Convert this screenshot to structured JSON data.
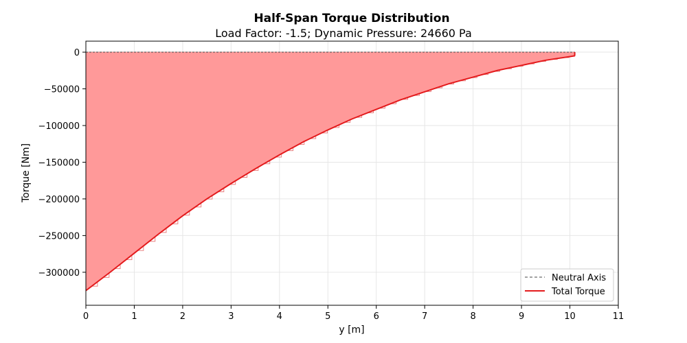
{
  "chart_data": {
    "type": "area",
    "title": "Half-Span Torque Distribution",
    "subtitle": "Load Factor: -1.5; Dynamic Pressure: 24660 Pa",
    "xlabel": "y [m]",
    "ylabel": "Torque [Nm]",
    "xlim": [
      0,
      11
    ],
    "ylim": [
      -345000,
      15000
    ],
    "xticks": [
      0,
      1,
      2,
      3,
      4,
      5,
      6,
      7,
      8,
      9,
      10,
      11
    ],
    "yticks": [
      0,
      -50000,
      -100000,
      -150000,
      -200000,
      -250000,
      -300000
    ],
    "ytick_labels": [
      "0",
      "−50000",
      "−100000",
      "−150000",
      "−200000",
      "−250000",
      "−300000"
    ],
    "grid": true,
    "legend_position": "bottom-right",
    "series": [
      {
        "name": "Neutral Axis",
        "style": "dashed",
        "color": "#444444",
        "x": [
          0,
          10.1
        ],
        "y": [
          0,
          0
        ]
      },
      {
        "name": "Total Torque",
        "style": "solid",
        "color": "#e41a1c",
        "fill": "#ff9999",
        "x": [
          0,
          0.5,
          1,
          1.5,
          2,
          2.5,
          3,
          3.5,
          4,
          4.5,
          5,
          5.5,
          6,
          6.5,
          7,
          7.5,
          8,
          8.5,
          9,
          9.5,
          10,
          10.1
        ],
        "y": [
          -325000,
          -300000,
          -274000,
          -248000,
          -223000,
          -200000,
          -179000,
          -159000,
          -140000,
          -122000,
          -106000,
          -91000,
          -78000,
          -65000,
          -54000,
          -43000,
          -34000,
          -25000,
          -18000,
          -11000,
          -6000,
          -5000
        ]
      }
    ],
    "bar_positions": [
      0,
      0.24,
      0.48,
      0.71,
      0.95,
      1.19,
      1.43,
      1.66,
      1.9,
      2.14,
      2.38,
      2.61,
      2.85,
      3.09,
      3.33,
      3.56,
      3.8,
      4.04,
      4.28,
      4.51,
      4.75,
      4.99,
      5.23,
      5.46,
      5.7,
      5.94,
      6.18,
      6.41,
      6.65,
      6.89,
      7.13,
      7.36,
      7.6,
      7.84,
      8.08,
      8.31,
      8.55,
      8.79,
      9.03,
      9.26,
      9.5,
      9.74,
      9.98
    ]
  }
}
